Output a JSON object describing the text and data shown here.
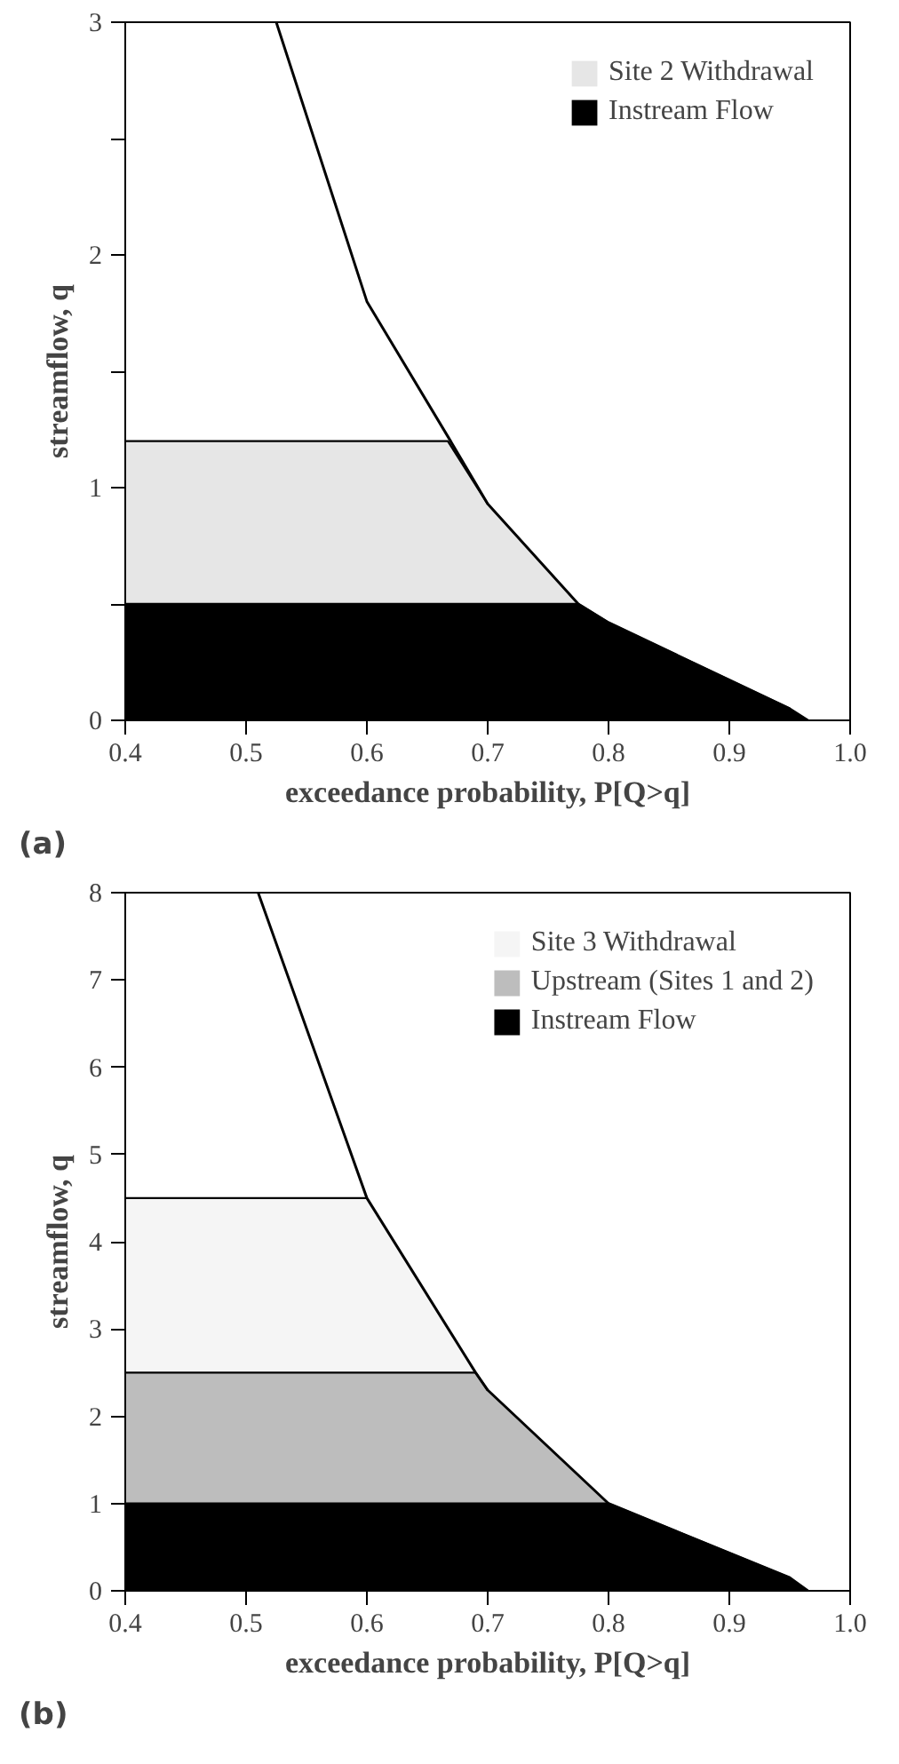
{
  "chart_data": [
    {
      "type": "area",
      "stacked": true,
      "xlabel": "exceedance probability, P[Q>q]",
      "ylabel": "streamflow, q",
      "annotations": [
        "(a)"
      ],
      "x": [
        0.4,
        0.525,
        0.6,
        0.667,
        0.7,
        0.775,
        0.8,
        0.95,
        0.965
      ],
      "series": [
        {
          "name": "Instream Flow",
          "color": "#000000",
          "values": [
            0.5,
            0.5,
            0.5,
            0.5,
            0.5,
            0.5,
            0.42,
            0.05,
            0
          ]
        },
        {
          "name": "Site 2 Withdrawal",
          "color": "#e6e6e6",
          "values": [
            0.7,
            0.7,
            0.7,
            0.7,
            0.43,
            0,
            0,
            0,
            0
          ]
        },
        {
          "type": "line",
          "color": "#000000",
          "values": [
            null,
            3,
            1.8,
            1.22,
            0.93,
            0.5,
            0.42,
            0.05,
            0
          ]
        }
      ],
      "xlim": [
        0.4,
        1.0
      ],
      "xticks": [
        0.4,
        0.5,
        0.6,
        0.7,
        0.8,
        0.9,
        "1.0"
      ],
      "ylim": [
        0,
        3
      ],
      "yticks": [
        0,
        {
          "value": 0.5,
          "label": null
        },
        1,
        {
          "value": 1.5,
          "label": null
        },
        2,
        {
          "value": 2.5,
          "label": null
        },
        3
      ],
      "legend": "top right"
    },
    {
      "type": "area",
      "stacked": true,
      "xlabel": "exceedance probability, P[Q>q]",
      "ylabel": "streamflow, q",
      "annotations": [
        "(b)"
      ],
      "x": [
        0.4,
        0.51,
        0.6,
        0.69,
        0.7,
        0.8,
        0.95,
        0.965
      ],
      "series": [
        {
          "name": "Instream Flow",
          "color": "#000000",
          "values": [
            1,
            1,
            1,
            1,
            1,
            1,
            0.15,
            0
          ]
        },
        {
          "name": "Upstream (Sites 1 and 2)",
          "color": "#bdbdbd",
          "values": [
            1.5,
            1.5,
            1.5,
            1.5,
            1.3,
            0,
            0,
            0
          ]
        },
        {
          "name": "Site 3 Withdrawal",
          "color": "#f5f5f5",
          "values": [
            2,
            2,
            2,
            0,
            0,
            0,
            0,
            0
          ]
        },
        {
          "type": "line",
          "color": "#000000",
          "values": [
            null,
            8,
            4.5,
            2.5,
            2.3,
            1,
            0.15,
            0
          ]
        }
      ],
      "xlim": [
        0.4,
        1.0
      ],
      "xticks": [
        0.4,
        0.5,
        0.6,
        0.7,
        0.8,
        0.9,
        "1.0"
      ],
      "ylim": [
        0,
        8
      ],
      "yticks": [
        0,
        1,
        2,
        3,
        4,
        5,
        6,
        7,
        8
      ],
      "legend": "top right"
    }
  ]
}
